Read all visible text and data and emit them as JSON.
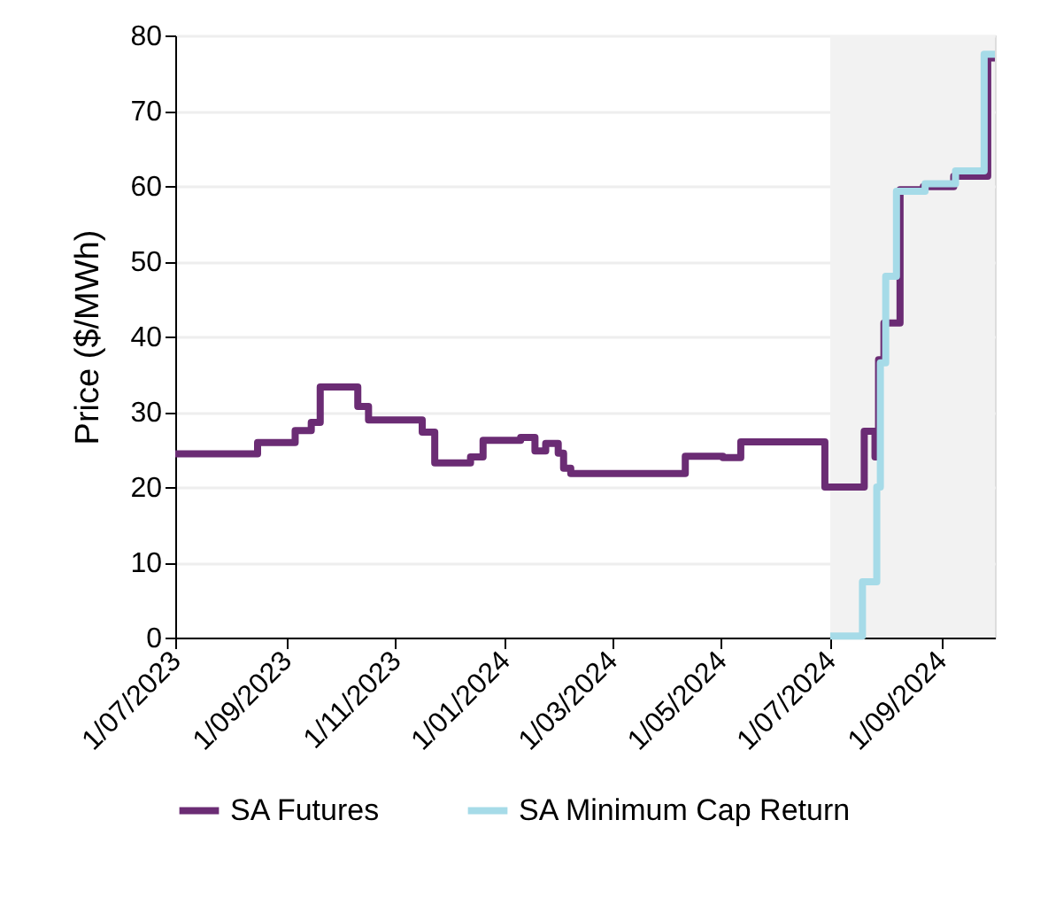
{
  "chart_data": {
    "type": "step",
    "ylabel": "Price ($/MWh)",
    "xlim": [
      "2023-07-01",
      "2024-10-01"
    ],
    "xticks": [
      {
        "value": "2023-07-01",
        "label": "1/07/2023"
      },
      {
        "value": "2023-09-01",
        "label": "1/09/2023"
      },
      {
        "value": "2023-11-01",
        "label": "1/11/2023"
      },
      {
        "value": "2024-01-01",
        "label": "1/01/2024"
      },
      {
        "value": "2024-03-01",
        "label": "1/03/2024"
      },
      {
        "value": "2024-05-01",
        "label": "1/05/2024"
      },
      {
        "value": "2024-07-01",
        "label": "1/07/2024"
      },
      {
        "value": "2024-09-01",
        "label": "1/09/2024"
      }
    ],
    "ylim": [
      0,
      80
    ],
    "yticks": [
      0,
      10,
      20,
      30,
      40,
      50,
      60,
      70,
      80
    ],
    "grid": "y",
    "legend": "bottom",
    "line_style": "solid",
    "marker": "none",
    "bands": [
      {
        "axis": "x",
        "from": "2024-07-01",
        "to": "2024-10-01",
        "color": "#f2f2f2"
      }
    ],
    "series": [
      {
        "name": "SA Futures",
        "color": "#6b2c74",
        "x": [
          "2023-07-01",
          "2023-08-16",
          "2023-09-06",
          "2023-09-15",
          "2023-09-20",
          "2023-10-11",
          "2023-10-17",
          "2023-11-16",
          "2023-11-23",
          "2023-12-13",
          "2023-12-20",
          "2024-01-10",
          "2024-01-18",
          "2024-01-24",
          "2024-01-31",
          "2024-02-03",
          "2024-02-07",
          "2024-04-11",
          "2024-05-02",
          "2024-05-12",
          "2024-06-28",
          "2024-07-20",
          "2024-07-26",
          "2024-07-28",
          "2024-07-31",
          "2024-08-09",
          "2024-08-22",
          "2024-09-08",
          "2024-09-27",
          "2024-10-01"
        ],
        "values": [
          24.4,
          25.9,
          27.5,
          28.6,
          33.3,
          30.7,
          28.9,
          27.3,
          23.2,
          24.0,
          26.2,
          26.6,
          24.8,
          25.8,
          24.5,
          22.5,
          21.8,
          24.1,
          23.9,
          26.0,
          20.0,
          27.4,
          24.0,
          36.9,
          41.8,
          59.5,
          59.9,
          61.3,
          77.0,
          77.0
        ]
      },
      {
        "name": "SA Minimum Cap Return",
        "color": "#a6dbe8",
        "x": [
          "2024-07-01",
          "2024-07-19",
          "2024-07-27",
          "2024-07-29",
          "2024-08-01",
          "2024-08-07",
          "2024-08-23",
          "2024-09-09",
          "2024-09-25",
          "2024-10-01"
        ],
        "values": [
          0.2,
          7.4,
          20.0,
          36.5,
          48.0,
          59.3,
          60.3,
          62.0,
          77.5,
          77.5
        ]
      }
    ]
  }
}
